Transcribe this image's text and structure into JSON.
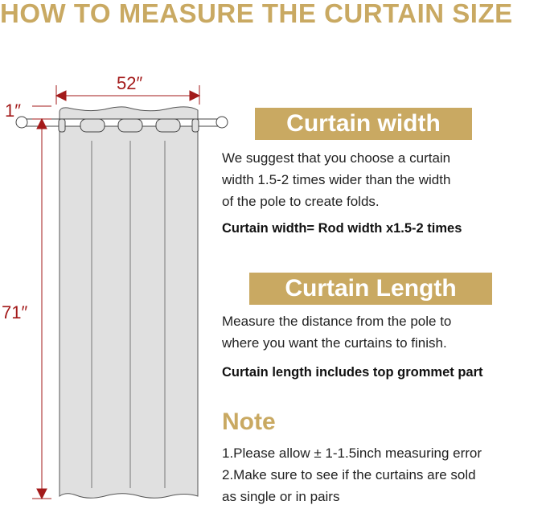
{
  "title": "HOW TO MEASURE THE CURTAIN SIZE",
  "dimensions": {
    "width": "52″",
    "top": "1″",
    "length": "71″"
  },
  "width_section": {
    "banner": "Curtain width",
    "lines": [
      "We suggest that you choose a curtain",
      "width 1.5-2 times wider than the width",
      "of the pole to create folds."
    ],
    "formula": "Curtain width= Rod width x1.5-2 times"
  },
  "length_section": {
    "banner": "Curtain Length",
    "lines": [
      "Measure the distance from the pole to",
      "where you want the curtains to finish."
    ],
    "formula": "Curtain length includes top grommet part"
  },
  "note": {
    "heading": "Note",
    "lines": [
      "1.Please allow ± 1-1.5inch measuring error",
      "2.Make sure to see if the curtains are sold",
      "as single or in pairs"
    ]
  },
  "colors": {
    "gold": "#c9a962",
    "dimension_red": "#a31a1a",
    "curtain": "#e0e0e0"
  }
}
